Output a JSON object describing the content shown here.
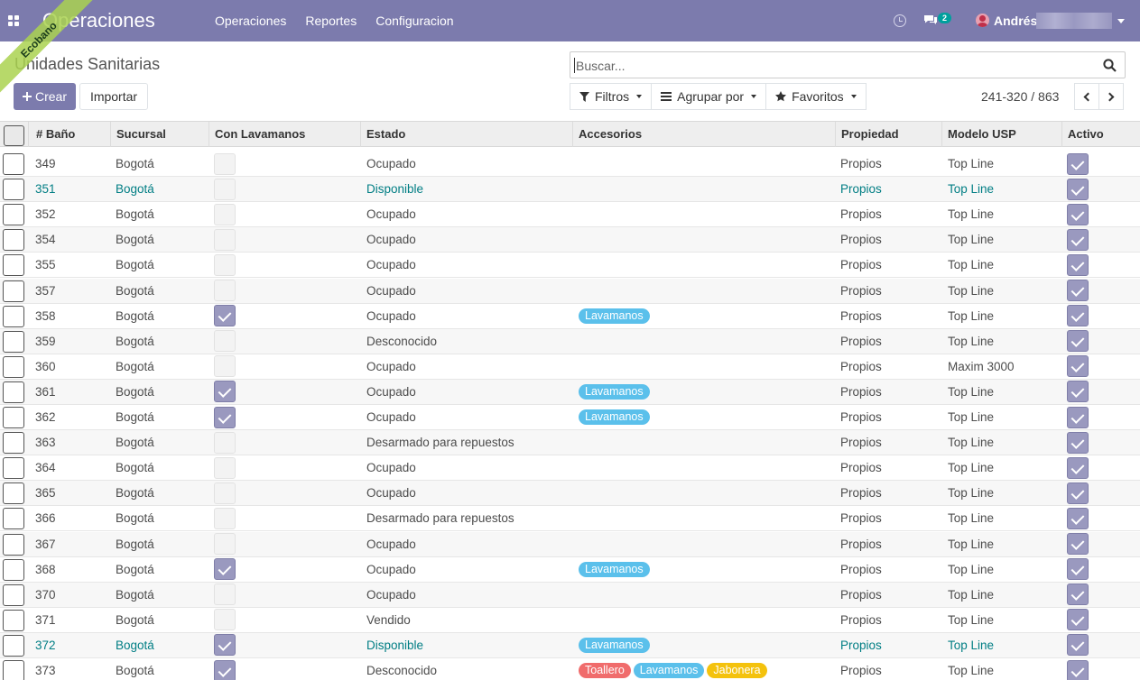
{
  "navbar": {
    "app_title": "Operaciones",
    "menu": [
      "Operaciones",
      "Reportes",
      "Configuracion"
    ],
    "chat_count": "2",
    "user_name": "Andrés",
    "accent_color": "#7c7bad"
  },
  "ribbon": {
    "label": "Ecobano"
  },
  "control": {
    "page_title": "Unidades Sanitarias",
    "create_label": "Crear",
    "import_label": "Importar",
    "search_placeholder": "Buscar...",
    "filters_label": "Filtros",
    "groupby_label": "Agrupar por",
    "favorites_label": "Favoritos",
    "pager": "241-320 / 863"
  },
  "table": {
    "columns": [
      "# Baño",
      "Sucursal",
      "Con Lavamanos",
      "Estado",
      "Accesorios",
      "Propiedad",
      "Modelo USP",
      "Activo"
    ],
    "tag_colors": {
      "Lavamanos": "#5bc0eb",
      "Toallero": "#f06c6c",
      "Jabonera": "#f4c20d"
    },
    "rows": [
      {
        "num": "349",
        "sucursal": "Bogotá",
        "lavamanos": false,
        "estado": "Ocupado",
        "accesorios": [],
        "propiedad": "Propios",
        "modelo": "Top Line",
        "activo": true,
        "highlight": false
      },
      {
        "num": "351",
        "sucursal": "Bogotá",
        "lavamanos": false,
        "estado": "Disponible",
        "accesorios": [],
        "propiedad": "Propios",
        "modelo": "Top Line",
        "activo": true,
        "highlight": true
      },
      {
        "num": "352",
        "sucursal": "Bogotá",
        "lavamanos": false,
        "estado": "Ocupado",
        "accesorios": [],
        "propiedad": "Propios",
        "modelo": "Top Line",
        "activo": true,
        "highlight": false
      },
      {
        "num": "354",
        "sucursal": "Bogotá",
        "lavamanos": false,
        "estado": "Ocupado",
        "accesorios": [],
        "propiedad": "Propios",
        "modelo": "Top Line",
        "activo": true,
        "highlight": false
      },
      {
        "num": "355",
        "sucursal": "Bogotá",
        "lavamanos": false,
        "estado": "Ocupado",
        "accesorios": [],
        "propiedad": "Propios",
        "modelo": "Top Line",
        "activo": true,
        "highlight": false
      },
      {
        "num": "357",
        "sucursal": "Bogotá",
        "lavamanos": false,
        "estado": "Ocupado",
        "accesorios": [],
        "propiedad": "Propios",
        "modelo": "Top Line",
        "activo": true,
        "highlight": false
      },
      {
        "num": "358",
        "sucursal": "Bogotá",
        "lavamanos": true,
        "estado": "Ocupado",
        "accesorios": [
          "Lavamanos"
        ],
        "propiedad": "Propios",
        "modelo": "Top Line",
        "activo": true,
        "highlight": false
      },
      {
        "num": "359",
        "sucursal": "Bogotá",
        "lavamanos": false,
        "estado": "Desconocido",
        "accesorios": [],
        "propiedad": "Propios",
        "modelo": "Top Line",
        "activo": true,
        "highlight": false
      },
      {
        "num": "360",
        "sucursal": "Bogotá",
        "lavamanos": false,
        "estado": "Ocupado",
        "accesorios": [],
        "propiedad": "Propios",
        "modelo": "Maxim 3000",
        "activo": true,
        "highlight": false
      },
      {
        "num": "361",
        "sucursal": "Bogotá",
        "lavamanos": true,
        "estado": "Ocupado",
        "accesorios": [
          "Lavamanos"
        ],
        "propiedad": "Propios",
        "modelo": "Top Line",
        "activo": true,
        "highlight": false
      },
      {
        "num": "362",
        "sucursal": "Bogotá",
        "lavamanos": true,
        "estado": "Ocupado",
        "accesorios": [
          "Lavamanos"
        ],
        "propiedad": "Propios",
        "modelo": "Top Line",
        "activo": true,
        "highlight": false
      },
      {
        "num": "363",
        "sucursal": "Bogotá",
        "lavamanos": false,
        "estado": "Desarmado para repuestos",
        "accesorios": [],
        "propiedad": "Propios",
        "modelo": "Top Line",
        "activo": true,
        "highlight": false
      },
      {
        "num": "364",
        "sucursal": "Bogotá",
        "lavamanos": false,
        "estado": "Ocupado",
        "accesorios": [],
        "propiedad": "Propios",
        "modelo": "Top Line",
        "activo": true,
        "highlight": false
      },
      {
        "num": "365",
        "sucursal": "Bogotá",
        "lavamanos": false,
        "estado": "Ocupado",
        "accesorios": [],
        "propiedad": "Propios",
        "modelo": "Top Line",
        "activo": true,
        "highlight": false
      },
      {
        "num": "366",
        "sucursal": "Bogotá",
        "lavamanos": false,
        "estado": "Desarmado para repuestos",
        "accesorios": [],
        "propiedad": "Propios",
        "modelo": "Top Line",
        "activo": true,
        "highlight": false
      },
      {
        "num": "367",
        "sucursal": "Bogotá",
        "lavamanos": false,
        "estado": "Ocupado",
        "accesorios": [],
        "propiedad": "Propios",
        "modelo": "Top Line",
        "activo": true,
        "highlight": false
      },
      {
        "num": "368",
        "sucursal": "Bogotá",
        "lavamanos": true,
        "estado": "Ocupado",
        "accesorios": [
          "Lavamanos"
        ],
        "propiedad": "Propios",
        "modelo": "Top Line",
        "activo": true,
        "highlight": false
      },
      {
        "num": "370",
        "sucursal": "Bogotá",
        "lavamanos": false,
        "estado": "Ocupado",
        "accesorios": [],
        "propiedad": "Propios",
        "modelo": "Top Line",
        "activo": true,
        "highlight": false
      },
      {
        "num": "371",
        "sucursal": "Bogotá",
        "lavamanos": false,
        "estado": "Vendido",
        "accesorios": [],
        "propiedad": "Propios",
        "modelo": "Top Line",
        "activo": true,
        "highlight": false
      },
      {
        "num": "372",
        "sucursal": "Bogotá",
        "lavamanos": true,
        "estado": "Disponible",
        "accesorios": [
          "Lavamanos"
        ],
        "propiedad": "Propios",
        "modelo": "Top Line",
        "activo": true,
        "highlight": true
      },
      {
        "num": "373",
        "sucursal": "Bogotá",
        "lavamanos": true,
        "estado": "Desconocido",
        "accesorios": [
          "Toallero",
          "Lavamanos",
          "Jabonera"
        ],
        "propiedad": "Propios",
        "modelo": "Top Line",
        "activo": true,
        "highlight": false
      }
    ]
  }
}
